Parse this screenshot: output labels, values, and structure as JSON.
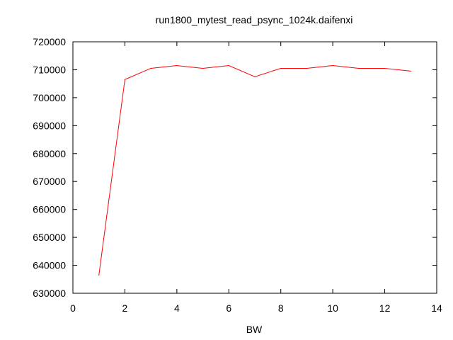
{
  "chart_data": {
    "type": "line",
    "title": "run1800_mytest_read_psync_1024k.daifenxi",
    "xlabel": "BW",
    "ylabel": "",
    "xlim": [
      0,
      14
    ],
    "ylim": [
      630000,
      720000
    ],
    "x_ticks": [
      0,
      2,
      4,
      6,
      8,
      10,
      12,
      14
    ],
    "y_ticks": [
      630000,
      640000,
      650000,
      660000,
      670000,
      680000,
      690000,
      700000,
      710000,
      720000
    ],
    "grid": false,
    "legend": "none",
    "series": [
      {
        "color": "#ff0000",
        "x": [
          1,
          2,
          3,
          4,
          5,
          6,
          7,
          8,
          9,
          10,
          11,
          12,
          13
        ],
        "y": [
          636500,
          706500,
          710500,
          711500,
          710500,
          711500,
          707500,
          710500,
          710500,
          711500,
          710500,
          710500,
          709500
        ]
      }
    ]
  }
}
